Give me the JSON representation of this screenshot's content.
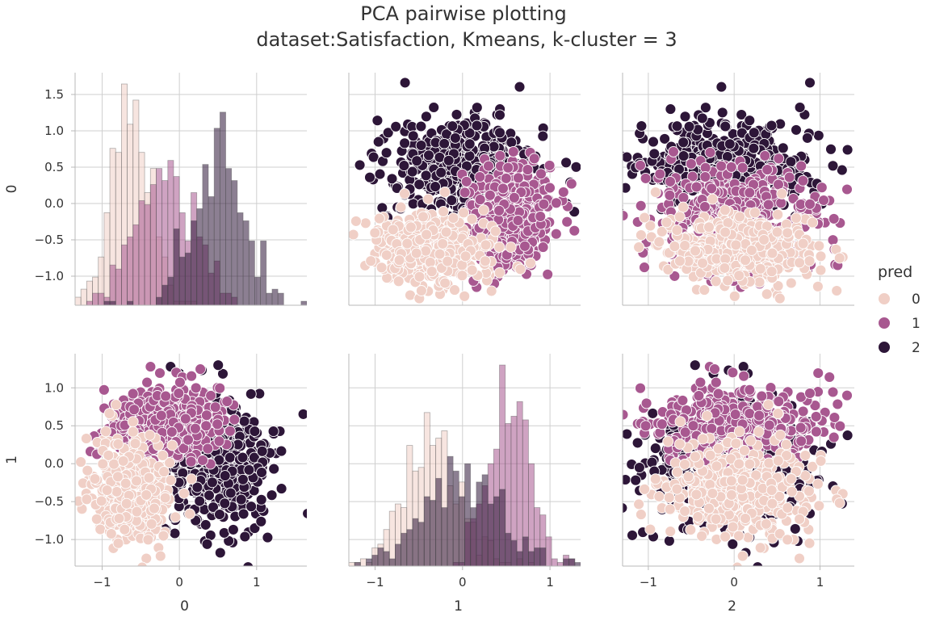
{
  "title_line1": "PCA pairwise plotting",
  "title_line2": "dataset:Satisfaction, Kmeans, k-cluster = 3",
  "chart_data": {
    "type": "scatter",
    "layout": "pairplot 2 rows x 3 columns",
    "variables_rows": [
      "0",
      "1"
    ],
    "variables_cols": [
      "0",
      "1",
      "2"
    ],
    "hue": "pred",
    "legend": {
      "title": "pred",
      "position": "right",
      "entries": [
        {
          "label": "0",
          "color": "#f0cfc6"
        },
        {
          "label": "1",
          "color": "#a85890"
        },
        {
          "label": "2",
          "color": "#2d1638"
        }
      ]
    },
    "axes": {
      "x": {
        "0": {
          "label": "0",
          "lim": [
            -1.35,
            1.65
          ],
          "ticks": [
            -1,
            0,
            1
          ],
          "tick_labels": [
            "−1",
            "0",
            "1"
          ]
        },
        "1": {
          "label": "1",
          "lim": [
            -1.3,
            1.35
          ],
          "ticks": [
            -1,
            0,
            1
          ],
          "tick_labels": [
            "−1",
            "0",
            "1"
          ]
        },
        "2": {
          "label": "2",
          "lim": [
            -1.3,
            1.4
          ],
          "ticks": [
            -1,
            0,
            1
          ],
          "tick_labels": [
            "−1",
            "0",
            "1"
          ]
        }
      },
      "y": {
        "0": {
          "label": "0",
          "lim": [
            -1.4,
            1.8
          ],
          "ticks": [
            -1.0,
            -0.5,
            0.0,
            0.5,
            1.0,
            1.5
          ],
          "tick_labels": [
            "−1.0",
            "−0.5",
            "0.0",
            "0.5",
            "1.0",
            "1.5"
          ]
        },
        "1": {
          "label": "1",
          "lim": [
            -1.35,
            1.45
          ],
          "ticks": [
            -1.0,
            -0.5,
            0.0,
            0.5,
            1.0
          ],
          "tick_labels": [
            "−1.0",
            "−0.5",
            "0.0",
            "0.5",
            "1.0"
          ]
        }
      }
    },
    "grid": true,
    "clusters": [
      {
        "pred": "0",
        "color": "#f0cfc6",
        "center": {
          "0": -0.6,
          "1": -0.35,
          "2": 0.05
        },
        "spread": {
          "0": 0.25,
          "1": 0.35,
          "2": 0.45
        }
      },
      {
        "pred": "1",
        "color": "#a85890",
        "center": {
          "0": -0.2,
          "1": 0.55,
          "2": 0.05
        },
        "spread": {
          "0": 0.35,
          "1": 0.25,
          "2": 0.5
        }
      },
      {
        "pred": "2",
        "color": "#2d1638",
        "center": {
          "0": 0.5,
          "1": -0.05,
          "2": -0.05
        },
        "spread": {
          "0": 0.35,
          "1": 0.5,
          "2": 0.5
        }
      }
    ],
    "histogram_peaks_0": [
      {
        "pred": "0",
        "mode": -0.6,
        "peak_count_relative": 1.0
      },
      {
        "pred": "1",
        "mode": -0.25,
        "peak_count_relative": 0.68
      },
      {
        "pred": "2",
        "mode": 0.5,
        "peak_count_relative": 0.92
      }
    ],
    "histogram_peaks_1": [
      {
        "pred": "0",
        "mode": -0.35,
        "peak_count_relative": 0.95
      },
      {
        "pred": "1",
        "mode": 0.4,
        "peak_count_relative": 1.0
      },
      {
        "pred": "2",
        "mode": -0.2,
        "peak_count_relative": 0.72
      }
    ]
  }
}
